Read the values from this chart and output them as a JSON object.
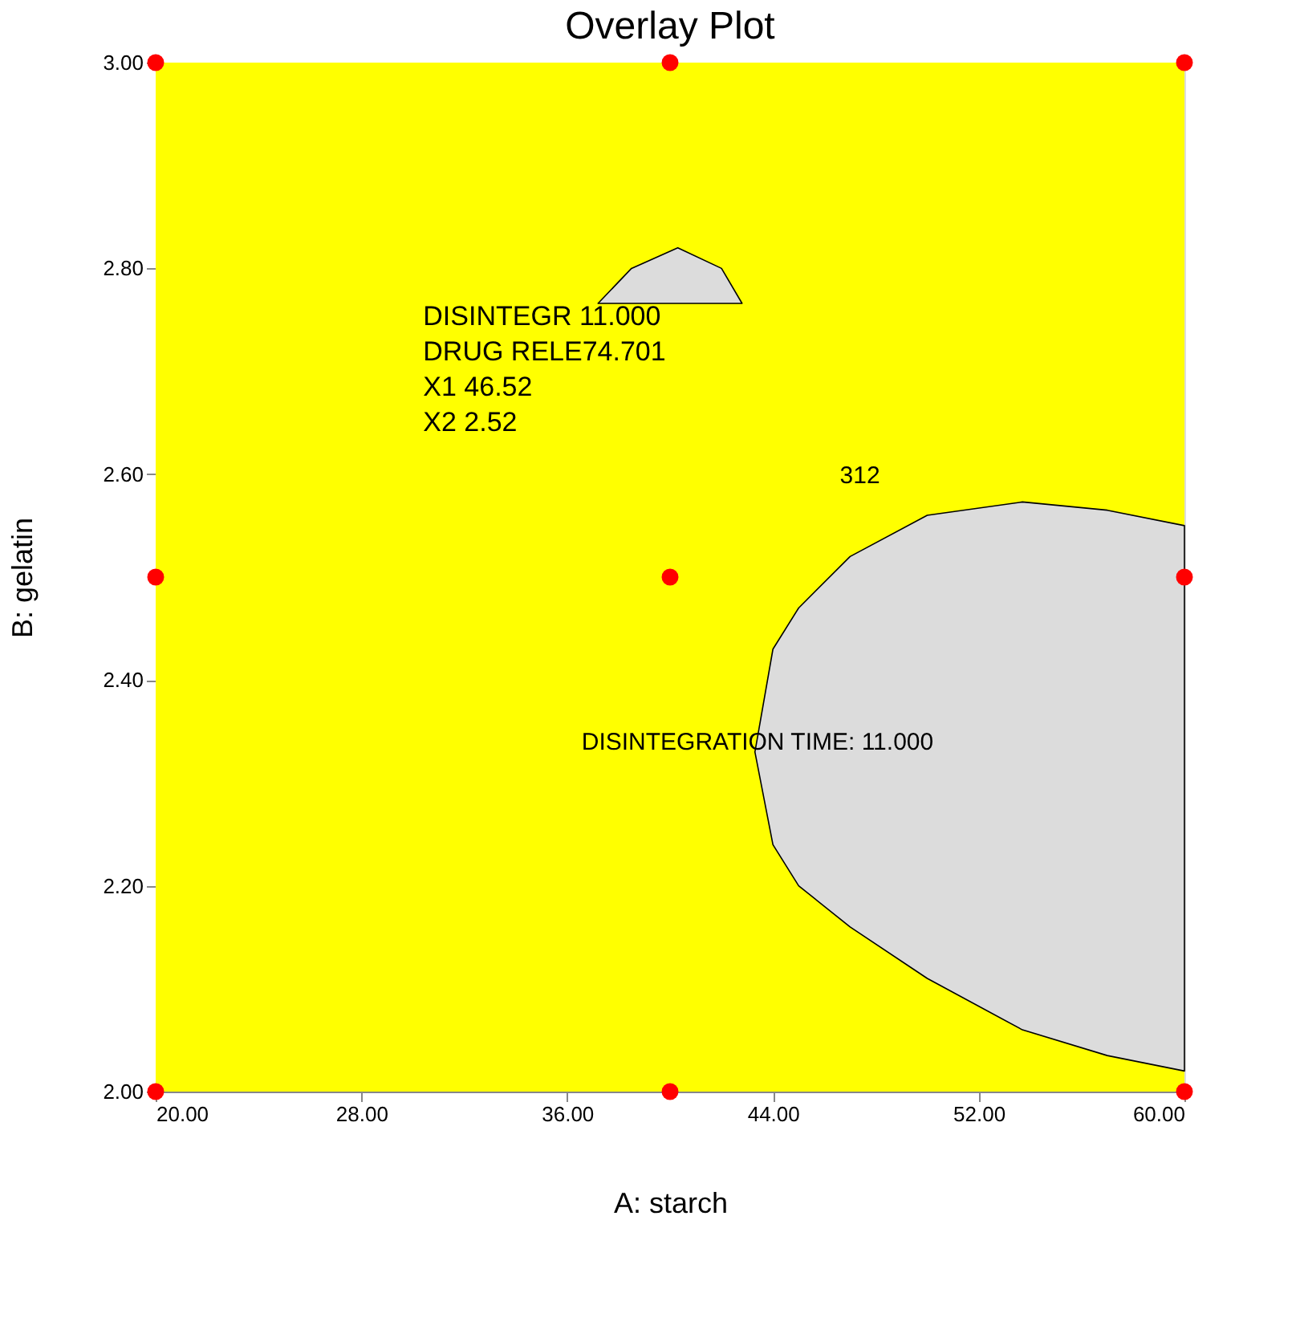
{
  "chart_data": {
    "type": "scatter",
    "title": "Overlay Plot",
    "xlabel": "A: starch",
    "ylabel": "B: gelatin",
    "xlim": [
      20,
      60
    ],
    "ylim": [
      2,
      3
    ],
    "xticks": [
      {
        "value": 20,
        "label": "20.00"
      },
      {
        "value": 28,
        "label": "28.00"
      },
      {
        "value": 36,
        "label": "36.00"
      },
      {
        "value": 44,
        "label": "44.00"
      },
      {
        "value": 52,
        "label": "52.00"
      },
      {
        "value": 60,
        "label": "60.00"
      }
    ],
    "yticks": [
      {
        "value": 2,
        "label": "2.00"
      },
      {
        "value": 2.2,
        "label": "2.20"
      },
      {
        "value": 2.4,
        "label": "2.40"
      },
      {
        "value": 2.6,
        "label": "2.60"
      },
      {
        "value": 2.8,
        "label": "2.80"
      },
      {
        "value": 3,
        "label": "3.00"
      }
    ],
    "legend": false,
    "bands": [
      {
        "axis": "x",
        "from": 20,
        "to": 60,
        "color": "#ffff00"
      }
    ],
    "series": [
      {
        "type": "area",
        "color": "#dcdcdc",
        "x": [
          43.3,
          44,
          45,
          47,
          50,
          53.7,
          57,
          60
        ],
        "values": [
          null,
          null,
          null,
          null,
          null,
          null,
          null,
          null
        ],
        "upper": [
          2.33,
          2.43,
          2.47,
          2.52,
          2.56,
          2.573,
          2.565,
          2.55
        ],
        "lower": [
          2.33,
          2.24,
          2.2,
          2.16,
          2.11,
          2.06,
          2.035,
          2.02
        ]
      },
      {
        "type": "area",
        "color": "#dcdcdc",
        "x": [
          37.2,
          38.5,
          40.3,
          42,
          42.8
        ],
        "values": [
          null,
          null,
          null,
          null,
          null
        ],
        "upper": [
          2.766,
          2.8,
          2.82,
          2.8,
          2.766
        ],
        "lower": [
          2.766,
          2.766,
          2.766,
          2.766,
          2.766
        ]
      },
      {
        "type": "scatter",
        "color": "#ff0000",
        "marker": "circle",
        "x": [
          20,
          40,
          60,
          20,
          40,
          60,
          20,
          40,
          60
        ],
        "values": [
          2,
          2,
          2,
          2.5,
          2.5,
          2.5,
          3,
          3,
          3
        ]
      }
    ],
    "annotations": [
      "DISINTEGR 11.000\nDRUG RELE74.701\nX1            46.52\nX2            2.52",
      "312",
      {
        "text": "DISINTEGRATION TIME: 11.000",
        "x": 43.4,
        "y": 2.34
      }
    ]
  }
}
